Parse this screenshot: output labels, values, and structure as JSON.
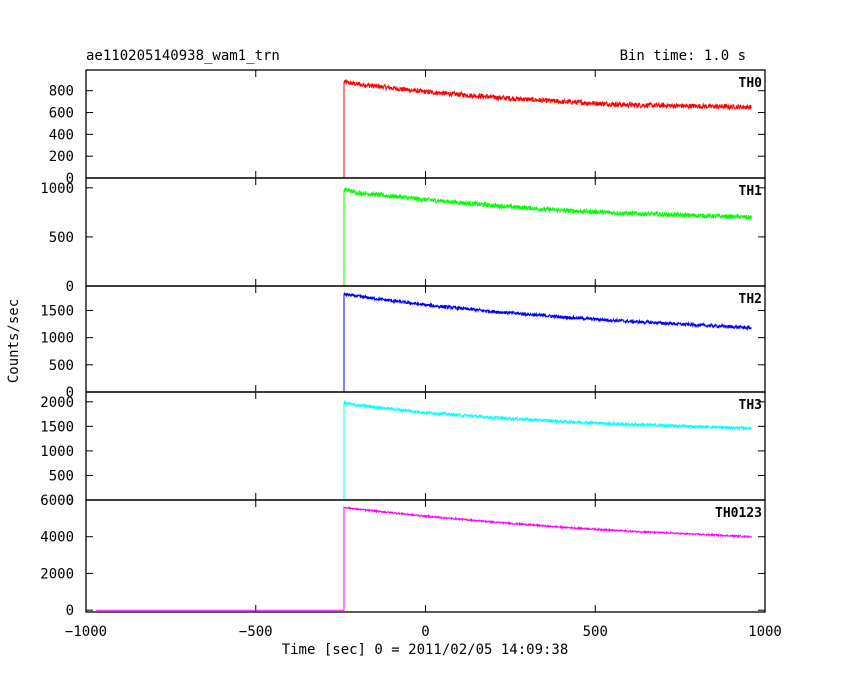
{
  "header": {
    "title": "ae110205140938_wam1_trn",
    "bin_time": "Bin time: 1.0 s"
  },
  "chart_data": {
    "type": "line",
    "title": "ae110205140938_wam1_trn",
    "xlabel": "Time [sec] 0 = 2011/02/05 14:09:38",
    "ylabel": "Counts/sec",
    "xlim": [
      -1000,
      1000
    ],
    "x_ticks": [
      -1000,
      -500,
      0,
      500,
      1000
    ],
    "x_tick_labels": [
      "−1000",
      "−500",
      "0",
      "500",
      "1000"
    ],
    "data_range": [
      -970,
      960
    ],
    "trigger_time": -240,
    "noise_level": "jagged noise around trend",
    "panels": [
      {
        "name": "TH0",
        "color": "#ff0000",
        "ylim": [
          0,
          990
        ],
        "y_ticks": [
          0,
          200,
          400,
          600,
          800
        ],
        "points": [
          {
            "x": -970,
            "y": 0
          },
          {
            "x": -240,
            "y": 0
          },
          {
            "x": -240,
            "y": 880
          },
          {
            "x": -200,
            "y": 860
          },
          {
            "x": 0,
            "y": 790
          },
          {
            "x": 200,
            "y": 740
          },
          {
            "x": 400,
            "y": 700
          },
          {
            "x": 600,
            "y": 670
          },
          {
            "x": 960,
            "y": 650
          }
        ],
        "noise": 45
      },
      {
        "name": "TH1",
        "color": "#00ff00",
        "ylim": [
          0,
          1100
        ],
        "y_ticks": [
          0,
          500,
          1000
        ],
        "points": [
          {
            "x": -970,
            "y": 0
          },
          {
            "x": -240,
            "y": 0
          },
          {
            "x": -240,
            "y": 980
          },
          {
            "x": -200,
            "y": 950
          },
          {
            "x": 0,
            "y": 880
          },
          {
            "x": 200,
            "y": 820
          },
          {
            "x": 400,
            "y": 770
          },
          {
            "x": 600,
            "y": 740
          },
          {
            "x": 960,
            "y": 700
          }
        ],
        "noise": 45
      },
      {
        "name": "TH2",
        "color": "#0000ff",
        "ylim": [
          0,
          1950
        ],
        "y_ticks": [
          0,
          500,
          1000,
          1500
        ],
        "points": [
          {
            "x": -970,
            "y": 0
          },
          {
            "x": -240,
            "y": 0
          },
          {
            "x": -240,
            "y": 1800
          },
          {
            "x": -200,
            "y": 1760
          },
          {
            "x": 0,
            "y": 1600
          },
          {
            "x": 200,
            "y": 1480
          },
          {
            "x": 400,
            "y": 1380
          },
          {
            "x": 600,
            "y": 1300
          },
          {
            "x": 960,
            "y": 1180
          }
        ],
        "noise": 60
      },
      {
        "name": "TH3",
        "color": "#00ffff",
        "ylim": [
          0,
          2200
        ],
        "y_ticks": [
          0,
          500,
          1000,
          1500,
          2000
        ],
        "points": [
          {
            "x": -970,
            "y": 0
          },
          {
            "x": -240,
            "y": 0
          },
          {
            "x": -240,
            "y": 1980
          },
          {
            "x": -200,
            "y": 1930
          },
          {
            "x": 0,
            "y": 1780
          },
          {
            "x": 200,
            "y": 1680
          },
          {
            "x": 400,
            "y": 1600
          },
          {
            "x": 600,
            "y": 1540
          },
          {
            "x": 960,
            "y": 1460
          }
        ],
        "noise": 60
      },
      {
        "name": "TH0123",
        "color": "#ff00ff",
        "ylim": [
          -100,
          6000
        ],
        "y_ticks": [
          0,
          2000,
          4000,
          6000
        ],
        "points": [
          {
            "x": -970,
            "y": 0
          },
          {
            "x": -240,
            "y": 0
          },
          {
            "x": -240,
            "y": 5600
          },
          {
            "x": -200,
            "y": 5500
          },
          {
            "x": 0,
            "y": 5120
          },
          {
            "x": 200,
            "y": 4800
          },
          {
            "x": 400,
            "y": 4520
          },
          {
            "x": 600,
            "y": 4300
          },
          {
            "x": 960,
            "y": 4000
          }
        ],
        "noise": 80
      }
    ]
  }
}
